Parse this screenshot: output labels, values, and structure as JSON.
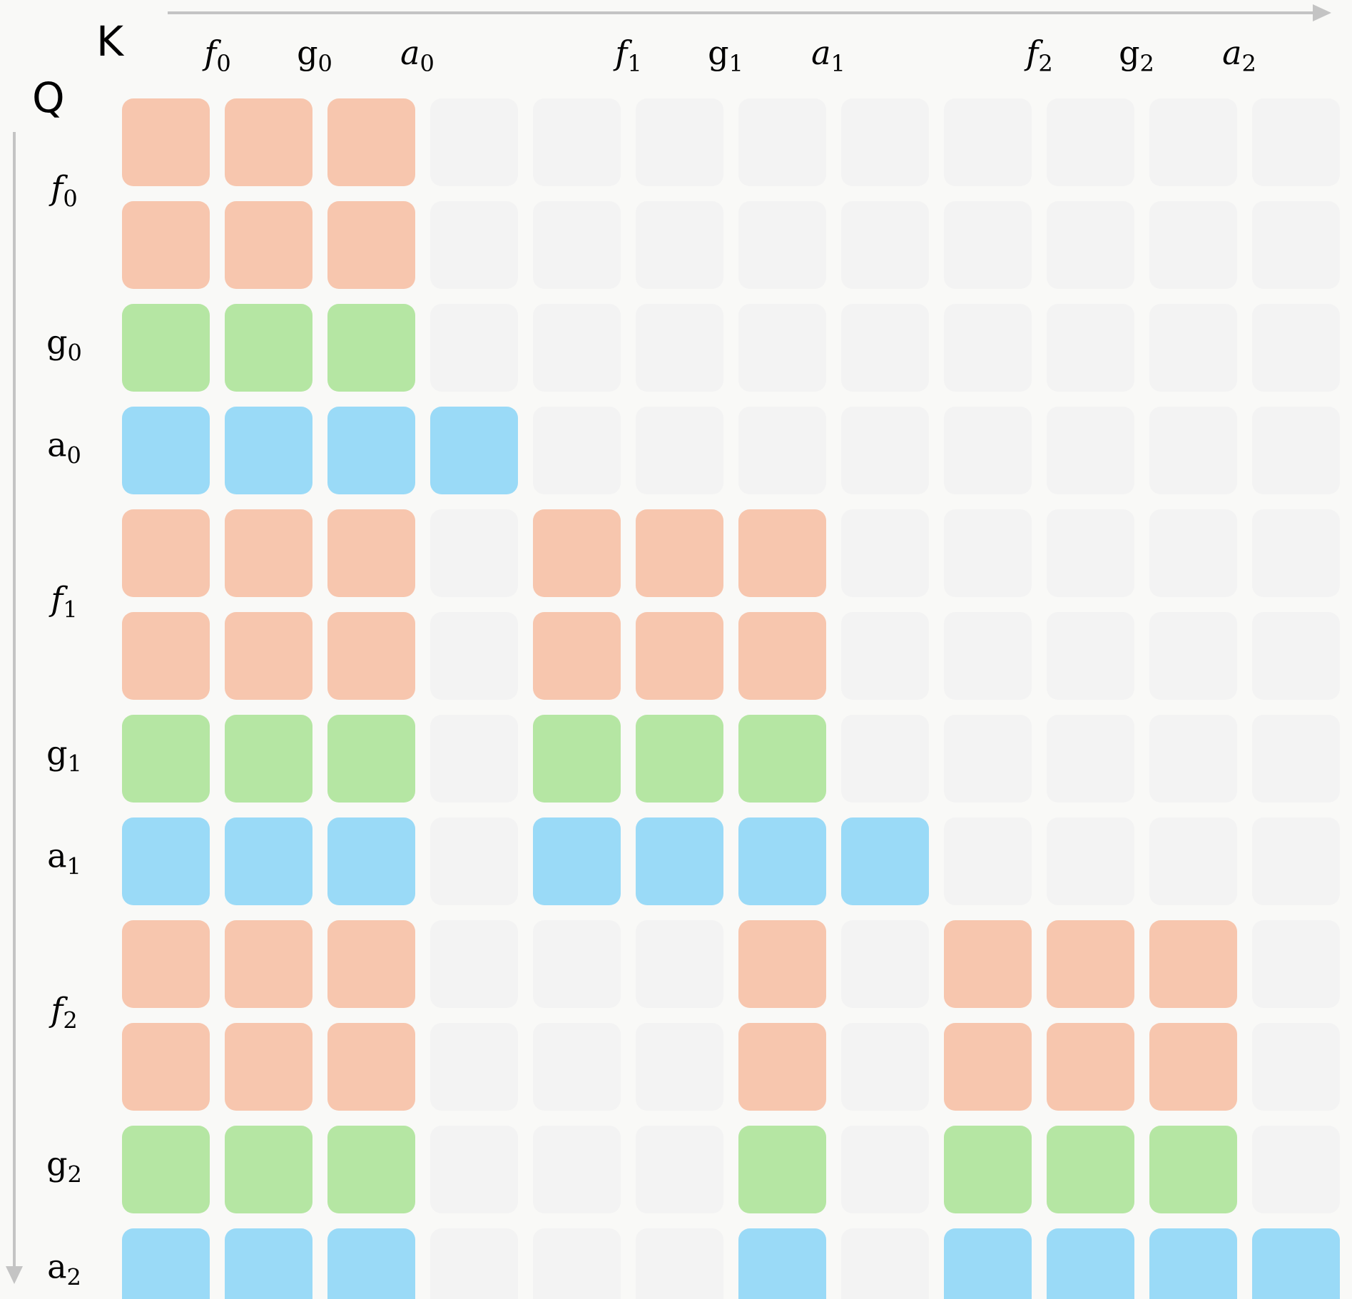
{
  "axes": {
    "k_title": "K",
    "q_title": "Q"
  },
  "colors": {
    "f": "#f7c6ae",
    "g": "#b5e6a3",
    "a": "#9adaf7",
    "empty": "#f3f3f3"
  },
  "column_labels": [
    {
      "base": "f",
      "sub": "0",
      "italic": true,
      "col": 1
    },
    {
      "base": "g",
      "sub": "0",
      "italic": false,
      "col": 2
    },
    {
      "base": "a",
      "sub": "0",
      "italic": true,
      "col": 3
    },
    {
      "base": "f",
      "sub": "1",
      "italic": true,
      "col": 5
    },
    {
      "base": "g",
      "sub": "1",
      "italic": false,
      "col": 6
    },
    {
      "base": "a",
      "sub": "1",
      "italic": true,
      "col": 7
    },
    {
      "base": "f",
      "sub": "2",
      "italic": true,
      "col": 9
    },
    {
      "base": "g",
      "sub": "2",
      "italic": false,
      "col": 10
    },
    {
      "base": "a",
      "sub": "2",
      "italic": true,
      "col": 11
    }
  ],
  "row_labels": [
    {
      "base": "f",
      "sub": "0",
      "italic": true,
      "row": 0.5
    },
    {
      "base": "g",
      "sub": "0",
      "italic": false,
      "row": 2
    },
    {
      "base": "a",
      "sub": "0",
      "italic": false,
      "row": 3
    },
    {
      "base": "f",
      "sub": "1",
      "italic": true,
      "row": 4.5
    },
    {
      "base": "g",
      "sub": "1",
      "italic": false,
      "row": 6
    },
    {
      "base": "a",
      "sub": "1",
      "italic": false,
      "row": 7
    },
    {
      "base": "f",
      "sub": "2",
      "italic": true,
      "row": 8.5
    },
    {
      "base": "g",
      "sub": "2",
      "italic": false,
      "row": 10
    },
    {
      "base": "a",
      "sub": "2",
      "italic": false,
      "row": 11
    }
  ],
  "matrix": [
    "fff.........",
    "fff.........",
    "ggg.........",
    "aaaa........",
    "fff.fff.....",
    "fff.fff.....",
    "ggg.ggg.....",
    "aaa.aaaa....",
    "fff...f.fff.",
    "fff...f.fff.",
    "ggg...g.ggg.",
    "aaa...a.aaaa"
  ]
}
